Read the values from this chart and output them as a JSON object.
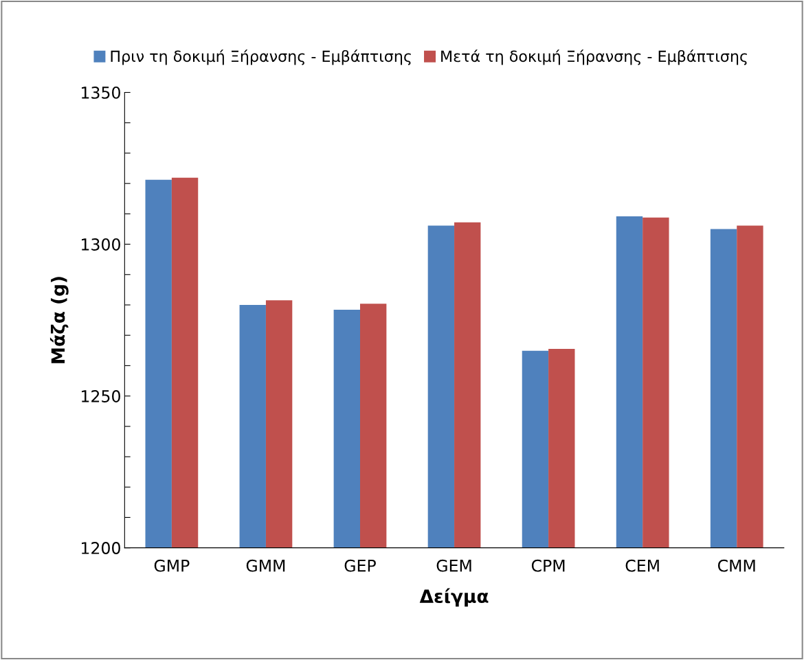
{
  "chart_data": {
    "type": "bar",
    "xlabel": "Δείγμα",
    "ylabel": "Μάζα (g)",
    "categories": [
      "GMP",
      "GMM",
      "GEP",
      "GEM",
      "CPM",
      "CEM",
      "CMM"
    ],
    "series": [
      {
        "name": "Πριν τη δοκιμή Ξήρανσης - Εμβάπτισης",
        "color": "#4f81bd",
        "values": [
          1321.2,
          1280.0,
          1278.4,
          1306.1,
          1264.9,
          1309.2,
          1305.0
        ]
      },
      {
        "name": "Μετά τη δοκιμή Ξήρανσης - Εμβάπτισης",
        "color": "#c0504d",
        "values": [
          1321.9,
          1281.5,
          1280.4,
          1307.2,
          1265.5,
          1308.8,
          1306.1
        ]
      }
    ],
    "ylim": [
      1200,
      1350
    ],
    "yticks": [
      1200,
      {
        "value": 1210,
        "label": null
      },
      {
        "value": 1220,
        "label": null
      },
      {
        "value": 1230,
        "label": null
      },
      {
        "value": 1240,
        "label": null
      },
      1250,
      {
        "value": 1260,
        "label": null
      },
      {
        "value": 1270,
        "label": null
      },
      {
        "value": 1280,
        "label": null
      },
      {
        "value": 1290,
        "label": null
      },
      1300,
      {
        "value": 1310,
        "label": null
      },
      {
        "value": 1320,
        "label": null
      },
      {
        "value": 1330,
        "label": null
      },
      {
        "value": 1340,
        "label": null
      },
      1350
    ],
    "grid": false,
    "legend": "top"
  }
}
